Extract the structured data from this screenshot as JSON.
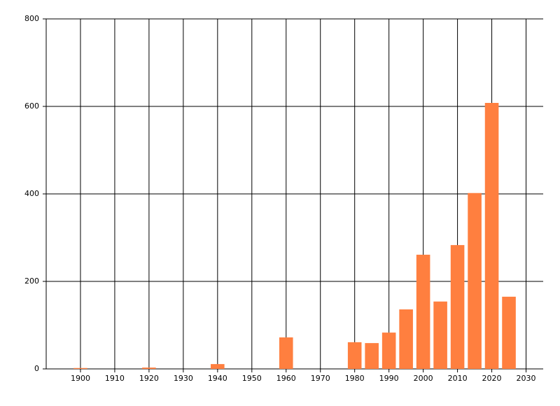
{
  "chart_data": {
    "type": "bar",
    "x": [
      1900,
      1920,
      1940,
      1960,
      1980,
      1985,
      1990,
      1995,
      2000,
      2005,
      2010,
      2015,
      2020,
      2025
    ],
    "values": [
      2,
      3,
      11,
      72,
      61,
      59,
      83,
      136,
      261,
      154,
      283,
      402,
      608,
      165
    ],
    "color": "#ff7f3f",
    "xlim": [
      1890,
      2035
    ],
    "xticks": [
      1900,
      1910,
      1920,
      1930,
      1940,
      1950,
      1960,
      1970,
      1980,
      1990,
      2000,
      2010,
      2020,
      2030
    ],
    "ylim": [
      0,
      800
    ],
    "yticks": [
      0,
      200,
      400,
      600,
      800
    ],
    "grid": true
  }
}
